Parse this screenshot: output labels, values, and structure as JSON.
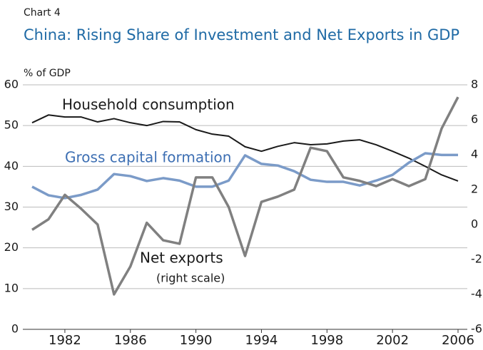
{
  "chart_data": {
    "type": "line",
    "label": "Chart 4",
    "title": "China: Rising Share of Investment and Net Exports in GDP",
    "y_label": "% of GDP",
    "x": [
      1980,
      1981,
      1982,
      1983,
      1984,
      1985,
      1986,
      1987,
      1988,
      1989,
      1990,
      1991,
      1992,
      1993,
      1994,
      1995,
      1996,
      1997,
      1998,
      1999,
      2000,
      2001,
      2002,
      2003,
      2004,
      2005,
      2006
    ],
    "xlim": [
      1980,
      2006
    ],
    "xticks": [
      1982,
      1986,
      1990,
      1994,
      1998,
      2002,
      2006
    ],
    "ylim": [
      0,
      60
    ],
    "yticks": [
      0,
      10,
      20,
      30,
      40,
      50,
      60
    ],
    "y2lim": [
      -6,
      8
    ],
    "y2ticks": [
      -6,
      -4,
      -2,
      0,
      2,
      4,
      6,
      8
    ],
    "grid": true,
    "series": [
      {
        "name": "Household consumption",
        "color": "#1a1a1a",
        "values": [
          50.7,
          52.6,
          52.1,
          52.1,
          50.9,
          51.7,
          50.7,
          50.0,
          51.0,
          50.9,
          49.0,
          47.9,
          47.4,
          44.8,
          43.7,
          44.9,
          45.8,
          45.3,
          45.5,
          46.2,
          46.5,
          45.3,
          43.7,
          42.0,
          40.0,
          37.9,
          36.4
        ]
      },
      {
        "name": "Gross capital formation",
        "color": "#7b9bc8",
        "values": [
          35.0,
          32.9,
          32.2,
          33.0,
          34.3,
          38.1,
          37.6,
          36.4,
          37.1,
          36.5,
          35.0,
          35.0,
          36.5,
          42.7,
          40.6,
          40.2,
          38.8,
          36.7,
          36.2,
          36.2,
          35.3,
          36.5,
          37.9,
          40.9,
          43.2,
          42.8,
          42.8
        ]
      },
      {
        "name": "Net exports",
        "color": "#808080",
        "axis": "y2",
        "values": [
          -0.3,
          0.3,
          1.7,
          0.9,
          0.0,
          -4.0,
          -2.4,
          0.1,
          -0.9,
          -1.1,
          2.7,
          2.7,
          1.0,
          -1.8,
          1.3,
          1.6,
          2.0,
          4.4,
          4.2,
          2.7,
          2.5,
          2.2,
          2.6,
          2.2,
          2.6,
          5.5,
          7.3
        ]
      }
    ],
    "annotations": [
      "(right scale)"
    ]
  }
}
